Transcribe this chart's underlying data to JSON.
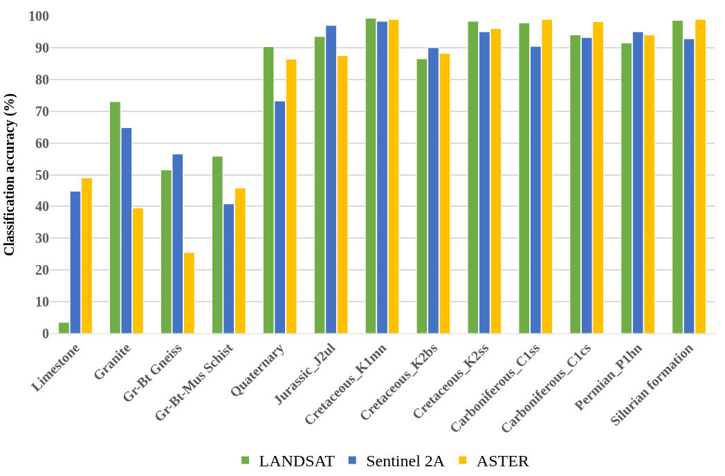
{
  "chart_data": {
    "type": "bar",
    "ylabel": "Classification accuracy (%)",
    "categories": [
      "Limestone",
      "Granite",
      "Gr-Bt Gneiss",
      "Gr-Bt-Mus Schist",
      "Quaternary",
      "Jurassic_J2ul",
      "Cretaceous_K1mn",
      "Cretaceous_K2bs",
      "Cretaceous_K2ss",
      "Carboniferous_C1ss",
      "Carboniferous_C1cs",
      "Permian_P1hn",
      "Silurian formation"
    ],
    "series": [
      {
        "name": "LANDSAT",
        "color": "#70ad47",
        "values": [
          3.5,
          73,
          51.5,
          55.8,
          90.3,
          93.5,
          99.3,
          86.5,
          98.3,
          97.8,
          94,
          91.5,
          98.6
        ]
      },
      {
        "name": "Sentinel 2A",
        "color": "#4472c4",
        "values": [
          44.8,
          64.8,
          56.5,
          40.8,
          73.2,
          97,
          98.3,
          90,
          95,
          90.4,
          93.2,
          95,
          92.8
        ]
      },
      {
        "name": "ASTER",
        "color": "#ffc000",
        "values": [
          49,
          39.5,
          25.5,
          45.8,
          86.4,
          87.5,
          98.9,
          88.2,
          96,
          98.9,
          98.2,
          94,
          98.9
        ]
      }
    ],
    "ylim": [
      0,
      100
    ],
    "yticks": [
      0,
      10,
      20,
      30,
      40,
      50,
      60,
      70,
      80,
      90,
      100
    ],
    "grid": "y",
    "legend": "bottom"
  }
}
